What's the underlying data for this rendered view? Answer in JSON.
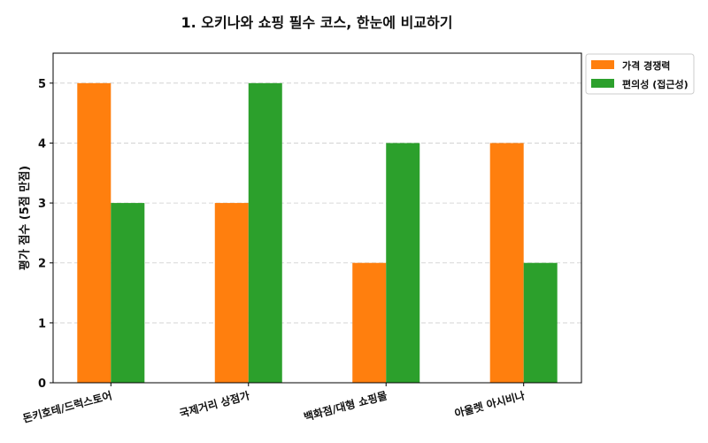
{
  "chart_data": {
    "type": "bar",
    "title": "1. 오키나와 쇼핑 필수 코스, 한눈에 비교하기",
    "xlabel": "",
    "ylabel": "평가 점수 (5점 만점)",
    "categories": [
      "돈키호테/드럭스토어",
      "국제거리 상점가",
      "백화점/대형 쇼핑몰",
      "아울렛 아시비나"
    ],
    "series": [
      {
        "name": "가격 경쟁력",
        "values": [
          5,
          3,
          2,
          4
        ],
        "color": "#ff7f0e"
      },
      {
        "name": "편의성 (접근성)",
        "values": [
          3,
          5,
          4,
          2
        ],
        "color": "#2ca02c"
      }
    ],
    "ylim": [
      0,
      5.5
    ],
    "yticks": [
      0,
      1,
      2,
      3,
      4,
      5
    ],
    "grid": "y dashed",
    "legend": "outside top-right"
  }
}
